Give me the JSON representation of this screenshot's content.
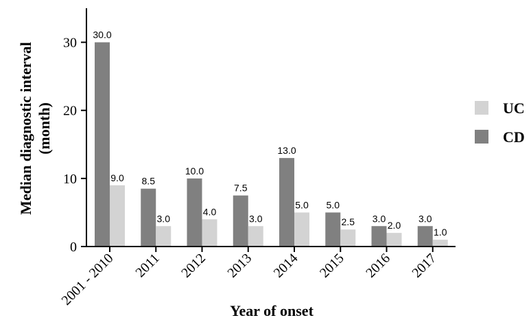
{
  "chart_data": {
    "type": "bar",
    "categories": [
      "2001 - 2010",
      "2011",
      "2012",
      "2013",
      "2014",
      "2015",
      "2016",
      "2017"
    ],
    "series": [
      {
        "name": "CD",
        "color": "#808080",
        "values": [
          30.0,
          8.5,
          10.0,
          7.5,
          13.0,
          5.0,
          3.0,
          3.0
        ]
      },
      {
        "name": "UC",
        "color": "#d3d3d3",
        "values": [
          9.0,
          3.0,
          4.0,
          3.0,
          5.0,
          2.5,
          2.0,
          1.0
        ]
      }
    ],
    "data_labels": {
      "CD": [
        "30.0",
        "8.5",
        "10.0",
        "7.5",
        "13.0",
        "5.0",
        "3.0",
        "3.0"
      ],
      "UC": [
        "9.0",
        "3.0",
        "4.0",
        "3.0",
        "5.0",
        "2.5",
        "2.0",
        "1.0"
      ]
    },
    "title": "",
    "xlabel": "Year of onset",
    "ylabel_lines": [
      "Median diagnostic interval",
      "(month)"
    ],
    "ylim": [
      0,
      35
    ],
    "yticks": [
      0,
      10,
      20,
      30
    ],
    "ytick_labels": [
      "0",
      "10",
      "20",
      "30"
    ],
    "grid": false,
    "legend": {
      "placement": "right",
      "entries": [
        {
          "label": "UC",
          "color": "#d3d3d3"
        },
        {
          "label": "CD",
          "color": "#808080"
        }
      ]
    }
  }
}
